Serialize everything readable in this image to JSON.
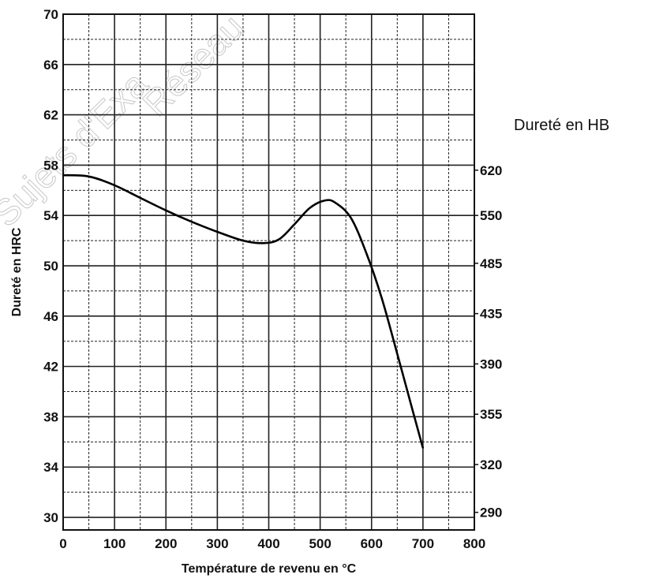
{
  "chart_data": {
    "type": "line",
    "title": "",
    "xlabel": "Température de revenu en °C",
    "ylabel": "Dureté en HRC",
    "y2label": "Dureté en HB",
    "xlim": [
      0,
      800
    ],
    "ylim": [
      29,
      70
    ],
    "x_ticks": [
      0,
      100,
      200,
      300,
      400,
      500,
      600,
      700,
      800
    ],
    "x_tick_labels": [
      "0",
      "100",
      "200",
      "300",
      "400",
      "500",
      "600",
      "700",
      "800"
    ],
    "y_ticks": [
      30,
      34,
      38,
      42,
      46,
      50,
      54,
      58,
      62,
      66,
      70
    ],
    "y_tick_labels": [
      "30",
      "34",
      "38",
      "42",
      "46",
      "50",
      "54",
      "58",
      "62",
      "66",
      "70"
    ],
    "y2_ticks": [
      {
        "label": "620",
        "hrc": 57.6
      },
      {
        "label": "550",
        "hrc": 54.0
      },
      {
        "label": "485",
        "hrc": 50.2
      },
      {
        "label": "435",
        "hrc": 46.2
      },
      {
        "label": "390",
        "hrc": 42.2
      },
      {
        "label": "355",
        "hrc": 38.2
      },
      {
        "label": "320",
        "hrc": 34.2
      },
      {
        "label": "290",
        "hrc": 30.4
      }
    ],
    "grid": true,
    "series": [
      {
        "x": [
          0,
          50,
          100,
          150,
          200,
          250,
          300,
          350,
          390,
          420,
          450,
          480,
          510,
          530,
          560,
          590,
          620,
          650,
          680,
          700
        ],
        "y": [
          57.2,
          57.1,
          56.4,
          55.4,
          54.4,
          53.5,
          52.7,
          52.0,
          51.8,
          52.1,
          53.3,
          54.6,
          55.2,
          55.0,
          53.8,
          51.0,
          47.4,
          43.0,
          38.5,
          35.5
        ]
      }
    ],
    "watermark": [
      "Sujets d'Exa",
      "Réseau"
    ]
  }
}
